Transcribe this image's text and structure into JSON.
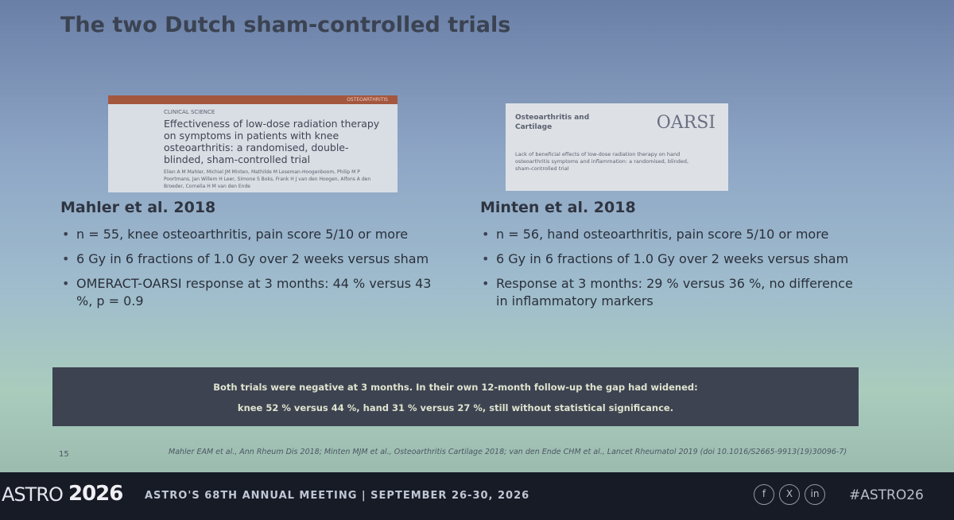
{
  "header": {
    "title": "The two Dutch sham-controlled trials"
  },
  "papers": [
    {
      "journal_band": "OSTEOARTHRITIS",
      "section": "CLINICAL SCIENCE",
      "title": "Effectiveness of low-dose radiation therapy on symptoms in patients with knee osteoarthritis: a randomised, double-blinded, sham-controlled trial",
      "authors": "Elien A M Mahler, Michiel JM Minten, Mathilde M Leseman-Hoogenboom, Philip M P Poortmans, Jan Willem H Leer, Simone S Boks, Frank H J van den Hoogen, Alfons A den Broeder, Cornelia H M van den Ende"
    },
    {
      "journal": "Osteoarthritis and Cartilage",
      "logo": "OARSI",
      "title": "Lack of beneficial effects of low-dose radiation therapy on hand osteoarthritis symptoms and inflammation: a randomised, blinded, sham-controlled trial"
    }
  ],
  "columns": [
    {
      "heading": "Mahler et al. 2018",
      "bullets": [
        "n = 55, knee osteoarthritis, pain score 5/10 or more",
        "6 Gy in 6 fractions of 1.0 Gy over 2 weeks versus sham",
        "OMERACT-OARSI response at 3 months: 44 % versus 43 %, p = 0.9"
      ]
    },
    {
      "heading": "Minten et al. 2018",
      "bullets": [
        "n = 56, hand osteoarthritis, pain score 5/10 or more",
        "6 Gy in 6 fractions of 1.0 Gy over 2 weeks versus sham",
        "Response at 3 months: 29 % versus 36 %, no difference in inflammatory markers"
      ]
    }
  ],
  "callout": [
    "Both trials were negative at 3 months. In their own 12-month follow-up the gap had widened:",
    "knee 52 % versus 44 %, hand 31 % versus 27 %, still without statistical significance."
  ],
  "page_number": "15",
  "references": "Mahler EAM et al., Ann Rheum Dis 2018; Minten MJM et al., Osteoarthritis Cartilage 2018; van den Ende CHM et al., Lancet Rheumatol 2019 (doi 10.1016/S2665-9913(19)30096-7)",
  "footer": {
    "brand": "ASTRO",
    "year": "2026",
    "meeting": "ASTRO'S 68TH ANNUAL MEETING  |  SEPTEMBER 26-30, 2026",
    "social": [
      "f",
      "X",
      "in"
    ],
    "hashtag": "#ASTRO26"
  }
}
